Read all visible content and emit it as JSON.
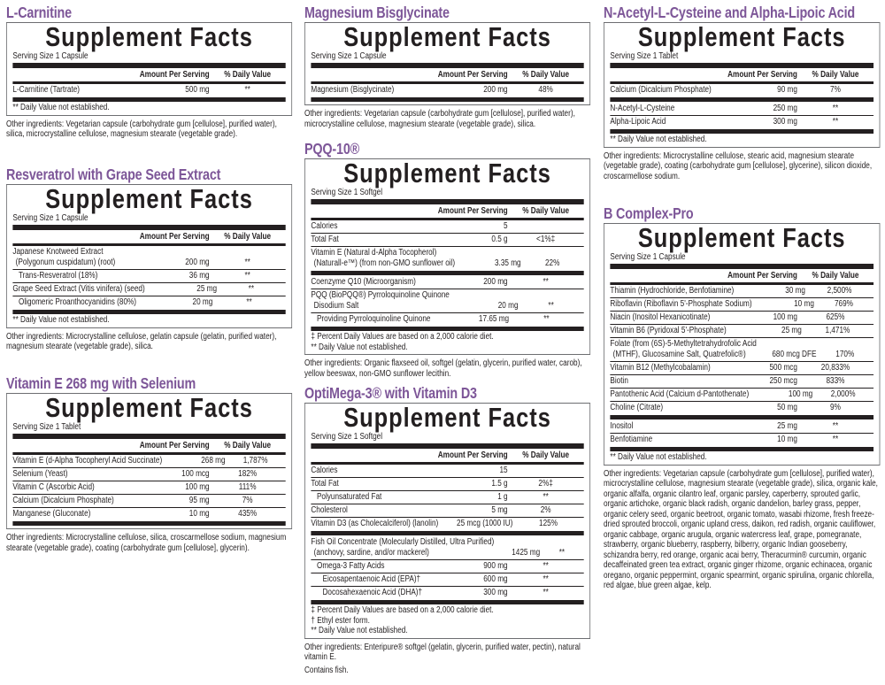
{
  "heading": "Supplement Facts",
  "header_amount": "Amount Per Serving",
  "header_dv": "% Daily Value",
  "colors": {
    "title": "#7d5698",
    "text": "#231f20",
    "border": "#6d6e71"
  },
  "panels": [
    {
      "title": "L-Carnitine",
      "serving": "Serving Size 1 Capsule",
      "groups": [
        [
          {
            "name": "L-Carnitine (Tartrate)",
            "amount": "500 mg",
            "dv": "**"
          }
        ]
      ],
      "footnotes": [
        "** Daily Value not established."
      ],
      "other": "Other ingredients: Vegetarian capsule (carbohydrate gum [cellulose], purified water), silica, microcrystalline cellulose, magnesium stearate (vegetable grade)."
    },
    {
      "title": "Resveratrol with Grape Seed Extract",
      "serving": "Serving Size 1 Capsule",
      "groups": [
        [
          {
            "name": "Japanese Knotweed Extract",
            "name2": "(Polygonum cuspidatum) (root)",
            "amount": "200 mg",
            "dv": "**"
          },
          {
            "name": "Trans-Resveratrol (18%)",
            "level": 1,
            "amount": "36 mg",
            "dv": "**"
          },
          {
            "name": "Grape Seed Extract (Vitis vinifera) (seed)",
            "amount": "25 mg",
            "dv": "**"
          },
          {
            "name": "Oligomeric Proanthocyanidins (80%)",
            "level": 1,
            "amount": "20 mg",
            "dv": "**"
          }
        ]
      ],
      "footnotes": [
        "** Daily Value not established."
      ],
      "other": "Other ingredients: Microcrystalline cellulose, gelatin capsule (gelatin, purified water), magnesium stearate (vegetable grade), silica."
    },
    {
      "title": "Vitamin E 268 mg with Selenium",
      "serving": "Serving Size 1 Tablet",
      "groups": [
        [
          {
            "name": "Vitamin E (d-Alpha Tocopheryl Acid Succinate)",
            "amount": "268 mg",
            "dv": "1,787%"
          },
          {
            "name": "Selenium (Yeast)",
            "amount": "100 mcg",
            "dv": "182%"
          },
          {
            "name": "Vitamin C (Ascorbic Acid)",
            "amount": "100 mg",
            "dv": "111%"
          },
          {
            "name": "Calcium (Dicalcium Phosphate)",
            "amount": "95 mg",
            "dv": "7%"
          },
          {
            "name": "Manganese (Gluconate)",
            "amount": "10 mg",
            "dv": "435%"
          }
        ]
      ],
      "footnotes": [],
      "other": "Other ingredients: Microcrystalline cellulose, silica, croscarmellose sodium, magnesium stearate (vegetable grade), coating (carbohydrate gum [cellulose], glycerin)."
    },
    {
      "title": "Magnesium Bisglycinate",
      "serving": "Serving Size 1 Capsule",
      "groups": [
        [
          {
            "name": "Magnesium (Bisglycinate)",
            "amount": "200 mg",
            "dv": "48%"
          }
        ]
      ],
      "footnotes": [],
      "other": "Other ingredients: Vegetarian capsule (carbohydrate gum [cellulose], purified water), microcrystalline cellulose, magnesium stearate (vegetable grade), silica."
    },
    {
      "title": "PQQ-10®",
      "serving": "Serving Size 1 Softgel",
      "groups": [
        [
          {
            "name": "Calories",
            "amount": "5",
            "dv": ""
          },
          {
            "name": "Total Fat",
            "amount": "0.5 g",
            "dv": "<1%‡"
          },
          {
            "name": "Vitamin E (Natural d-Alpha Tocopherol)",
            "name2": "(Naturall-e™) (from non-GMO sunflower oil)",
            "amount": "3.35 mg",
            "dv": "22%"
          }
        ],
        [
          {
            "name": "Coenzyme Q10 (Microorganism)",
            "amount": "200 mg",
            "dv": "**"
          },
          {
            "name": "PQQ (BioPQQ®) Pyrroloquinoline Quinone",
            "name2": "Disodium Salt",
            "amount": "20 mg",
            "dv": "**"
          },
          {
            "name": "Providing Pyrroloquinoline Quinone",
            "level": 1,
            "amount": "17.65 mg",
            "dv": "**"
          }
        ]
      ],
      "footnotes": [
        "‡  Percent Daily Values are based on a 2,000 calorie diet.",
        "**  Daily Value not established."
      ],
      "other": "Other ingredients: Organic flaxseed oil, softgel (gelatin, glycerin, purified water, carob), yellow beeswax, non-GMO sunflower lecithin."
    },
    {
      "title": "OptiMega-3® with Vitamin D3",
      "serving": "Serving Size 1 Softgel",
      "groups": [
        [
          {
            "name": "Calories",
            "amount": "15",
            "dv": ""
          },
          {
            "name": "Total Fat",
            "amount": "1.5 g",
            "dv": "2%‡"
          },
          {
            "name": "Polyunsaturated Fat",
            "level": 1,
            "amount": "1 g",
            "dv": "**"
          },
          {
            "name": "Cholesterol",
            "amount": "5 mg",
            "dv": "2%"
          },
          {
            "name": "Vitamin D3 (as Cholecalciferol) (lanolin)",
            "amount": "25 mcg (1000 IU)",
            "dv": "125%"
          }
        ],
        [
          {
            "name": "Fish Oil Concentrate (Molecularly Distilled, Ultra Purified)",
            "name2": "(anchovy, sardine, and/or mackerel)",
            "amount": "1425 mg",
            "dv": "**"
          },
          {
            "name": "Omega-3 Fatty Acids",
            "level": 1,
            "amount": "900 mg",
            "dv": "**"
          },
          {
            "name": "Eicosapentaenoic Acid (EPA)†",
            "level": 2,
            "amount": "600 mg",
            "dv": "**"
          },
          {
            "name": "Docosahexaenoic Acid (DHA)†",
            "level": 2,
            "amount": "300 mg",
            "dv": "**"
          }
        ]
      ],
      "footnotes": [
        "‡  Percent Daily Values are based on a 2,000 calorie diet.",
        "†  Ethyl ester form.",
        "**  Daily Value not established."
      ],
      "other": "Other ingredients: Enteripure® softgel (gelatin, glycerin, purified water, pectin), natural vitamin E.",
      "extra": "Contains fish."
    },
    {
      "title": "N-Acetyl-L-Cysteine and Alpha-Lipoic Acid",
      "serving": "Serving Size 1 Tablet",
      "groups": [
        [
          {
            "name": "Calcium (Dicalcium Phosphate)",
            "amount": "90 mg",
            "dv": "7%"
          }
        ],
        [
          {
            "name": "N-Acetyl-L-Cysteine",
            "amount": "250 mg",
            "dv": "**"
          },
          {
            "name": "Alpha-Lipoic Acid",
            "amount": "300 mg",
            "dv": "**"
          }
        ]
      ],
      "footnotes": [
        "** Daily Value not established."
      ],
      "other": "Other ingredients: Microcrystalline cellulose, stearic acid, magnesium stearate (vegetable grade), coating (carbohydrate gum [cellulose], glycerine), silicon dioxide, croscarmellose sodium."
    },
    {
      "title": "B Complex-Pro",
      "serving": "Serving Size 1 Capsule",
      "groups": [
        [
          {
            "name": "Thiamin (Hydrochloride, Benfotiamine)",
            "amount": "30 mg",
            "dv": "2,500%"
          },
          {
            "name": "Riboflavin (Riboflavin 5'-Phosphate Sodium)",
            "amount": "10 mg",
            "dv": "769%"
          },
          {
            "name": "Niacin (Inositol Hexanicotinate)",
            "amount": "100 mg",
            "dv": "625%"
          },
          {
            "name": "Vitamin B6 (Pyridoxal 5'-Phosphate)",
            "amount": "25 mg",
            "dv": "1,471%"
          },
          {
            "name": "Folate (from (6S)-5-Methyltetrahydrofolic Acid",
            "name2": "(MTHF), Glucosamine Salt, Quatrefolic®)",
            "amount": "680 mcg DFE",
            "dv": "170%"
          },
          {
            "name": "Vitamin B12 (Methylcobalamin)",
            "amount": "500 mcg",
            "dv": "20,833%"
          },
          {
            "name": "Biotin",
            "amount": "250 mcg",
            "dv": "833%"
          },
          {
            "name": "Pantothenic Acid (Calcium d-Pantothenate)",
            "amount": "100 mg",
            "dv": "2,000%"
          },
          {
            "name": "Choline (Citrate)",
            "amount": "50 mg",
            "dv": "9%"
          }
        ],
        [
          {
            "name": "Inositol",
            "amount": "25 mg",
            "dv": "**"
          },
          {
            "name": "Benfotiamine",
            "amount": "10 mg",
            "dv": "**"
          }
        ]
      ],
      "footnotes": [
        "** Daily Value not established."
      ],
      "other": "Other ingredients: Vegetarian capsule (carbohydrate gum [cellulose], purified water), microcrystalline cellulose, magnesium stearate (vegetable grade), silica, organic kale, organic alfalfa, organic cilantro leaf, organic parsley, caperberry, sprouted garlic, organic artichoke, organic black radish, organic dandelion, barley grass, pepper, organic celery seed, organic beetroot, organic tomato, wasabi rhizome, fresh freeze-dried sprouted broccoli, organic upland cress, daikon, red radish, organic cauliflower, organic cabbage, organic arugula, organic watercress leaf, grape, pomegranate, strawberry, organic blueberry, raspberry, bilberry, organic Indian gooseberry, schizandra berry, red orange, organic acai berry, Theracurmin® curcumin, organic decaffeinated green tea extract, organic ginger rhizome, organic echinacea, organic oregano, organic peppermint, organic spearmint, organic spirulina, organic chlorella, red algae, blue green algae, kelp."
    }
  ]
}
